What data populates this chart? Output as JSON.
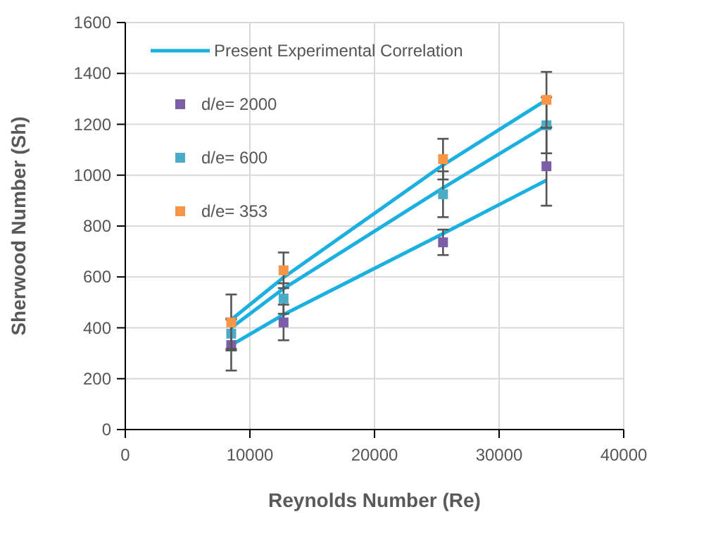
{
  "chart_data": {
    "type": "scatter",
    "xlabel": "Reynolds Number (Re)",
    "ylabel": "Sherwood Number  (Sh)",
    "xlim": [
      0,
      40000
    ],
    "xticks": [
      0,
      10000,
      20000,
      30000,
      40000
    ],
    "ylim": [
      0,
      1600
    ],
    "yticks": [
      0,
      200,
      400,
      600,
      800,
      1000,
      1200,
      1400,
      1600
    ],
    "grid": true,
    "legend": "top left",
    "marker": "square",
    "series": [
      {
        "type": "line",
        "name": "Present Experimental Correlation",
        "marker": "none",
        "color": "#1cb0e0",
        "x": [
          8500,
          12700,
          25500,
          33800
        ],
        "values": [
          432,
          598,
          1040,
          1296
        ]
      },
      {
        "type": "line",
        "marker": "none",
        "color": "#1cb0e0",
        "x": [
          8500,
          12700,
          25500,
          33800
        ],
        "values": [
          400,
          554,
          950,
          1196
        ]
      },
      {
        "type": "line",
        "marker": "none",
        "color": "#1cb0e0",
        "x": [
          8500,
          12700,
          25500,
          33800
        ],
        "values": [
          332,
          452,
          770,
          980
        ]
      },
      {
        "name": "d/e= 2000",
        "color": "#7b5ea7",
        "x": [
          8500,
          12700,
          25500,
          33800
        ],
        "values": [
          332,
          421,
          736,
          1035
        ],
        "errors": [
          100,
          70,
          50,
          155
        ]
      },
      {
        "name": "d/e= 600",
        "color": "#4bacc6",
        "x": [
          8500,
          12700,
          25500,
          33800
        ],
        "values": [
          377,
          515,
          925,
          1196
        ],
        "errors": [
          60,
          60,
          90,
          110
        ]
      },
      {
        "name": "d/e= 353",
        "color": "#f79646",
        "x": [
          8500,
          12700,
          25500,
          33800
        ],
        "values": [
          421,
          626,
          1063,
          1296
        ],
        "errors": [
          110,
          70,
          80,
          110
        ]
      }
    ]
  }
}
